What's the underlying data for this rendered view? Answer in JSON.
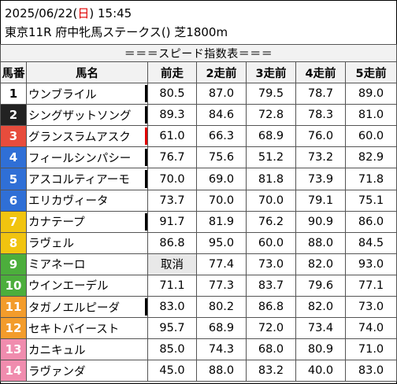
{
  "header": {
    "date": "2025/06/22",
    "paren_open": "(",
    "weekday": "日",
    "paren_close": ")",
    "time": "15:45",
    "race": "東京11R 府中牝馬ステークス() 芝1800m"
  },
  "table": {
    "title": "＝＝＝スピード指数表＝＝＝",
    "columns": [
      "馬番",
      "馬名",
      "前走",
      "2走前",
      "3走前",
      "4走前",
      "5走前"
    ],
    "rows": [
      {
        "no": "1",
        "name": "ウンブライル",
        "mark": "#000000",
        "vals": [
          "80.5",
          "87.0",
          "79.5",
          "78.7",
          "89.0"
        ]
      },
      {
        "no": "2",
        "name": "シングザットソング",
        "mark": "#000000",
        "vals": [
          "89.3",
          "84.6",
          "72.8",
          "78.3",
          "81.0"
        ]
      },
      {
        "no": "3",
        "name": "グランスラムアスク",
        "mark": "#e00000",
        "vals": [
          "61.0",
          "66.3",
          "68.9",
          "76.0",
          "60.0"
        ]
      },
      {
        "no": "4",
        "name": "フィールシンパシー",
        "mark": "#000000",
        "vals": [
          "76.7",
          "75.6",
          "51.2",
          "73.2",
          "82.9"
        ]
      },
      {
        "no": "5",
        "name": "アスコルティアーモ",
        "mark": "#000000",
        "vals": [
          "70.0",
          "69.0",
          "81.8",
          "73.9",
          "71.8"
        ]
      },
      {
        "no": "6",
        "name": "エリカヴィータ",
        "mark": "",
        "vals": [
          "73.7",
          "70.0",
          "70.0",
          "79.1",
          "75.1"
        ]
      },
      {
        "no": "7",
        "name": "カナテープ",
        "mark": "#000000",
        "vals": [
          "91.7",
          "81.9",
          "76.2",
          "90.9",
          "86.0"
        ]
      },
      {
        "no": "8",
        "name": "ラヴェル",
        "mark": "",
        "vals": [
          "86.8",
          "95.0",
          "60.0",
          "88.0",
          "84.5"
        ]
      },
      {
        "no": "9",
        "name": "ミアネーロ",
        "mark": "",
        "vals": [
          "取消",
          "77.4",
          "73.0",
          "82.0",
          "93.0"
        ]
      },
      {
        "no": "10",
        "name": "ウインエーデル",
        "mark": "",
        "vals": [
          "71.1",
          "77.3",
          "83.7",
          "79.6",
          "77.1"
        ]
      },
      {
        "no": "11",
        "name": "タガノエルピーダ",
        "mark": "#000000",
        "vals": [
          "83.0",
          "80.2",
          "86.8",
          "82.0",
          "73.0"
        ]
      },
      {
        "no": "12",
        "name": "セキトバイースト",
        "mark": "",
        "vals": [
          "95.7",
          "68.9",
          "72.0",
          "73.4",
          "74.0"
        ]
      },
      {
        "no": "13",
        "name": "カニキュル",
        "mark": "",
        "vals": [
          "85.0",
          "74.3",
          "68.0",
          "80.9",
          "71.0"
        ]
      },
      {
        "no": "14",
        "name": "ラヴァンダ",
        "mark": "",
        "vals": [
          "45.0",
          "88.0",
          "83.2",
          "40.0",
          "83.0"
        ]
      }
    ]
  },
  "colors": {
    "waku": {
      "1": {
        "bg": "#ffffff",
        "fg": "#000000"
      },
      "2": {
        "bg": "#222222",
        "fg": "#ffffff"
      },
      "3": {
        "bg": "#e74c3c",
        "fg": "#ffffff"
      },
      "4": {
        "bg": "#2f6fd6",
        "fg": "#ffffff"
      },
      "5": {
        "bg": "#2f6fd6",
        "fg": "#ffffff"
      },
      "6": {
        "bg": "#2f6fd6",
        "fg": "#ffffff"
      },
      "7": {
        "bg": "#f1c40f",
        "fg": "#ffffff"
      },
      "8": {
        "bg": "#f1c40f",
        "fg": "#ffffff"
      },
      "9": {
        "bg": "#4cae3c",
        "fg": "#ffffff"
      },
      "10": {
        "bg": "#4cae3c",
        "fg": "#ffffff"
      },
      "11": {
        "bg": "#f39c2b",
        "fg": "#ffffff"
      },
      "12": {
        "bg": "#f39c2b",
        "fg": "#ffffff"
      },
      "13": {
        "bg": "#f08cae",
        "fg": "#ffffff"
      },
      "14": {
        "bg": "#f08cae",
        "fg": "#ffffff"
      }
    },
    "scratch_bg": "#e8e8e8"
  }
}
